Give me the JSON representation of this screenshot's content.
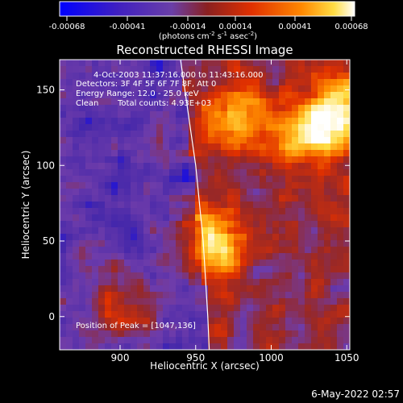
{
  "chart_data": {
    "type": "heatmap",
    "title": "Reconstructed RHESSI Image",
    "xlabel": "Heliocentric X (arcsec)",
    "ylabel": "Heliocentric Y (arcsec)",
    "xlim": [
      860,
      1052
    ],
    "ylim": [
      -22,
      170
    ],
    "xticks": [
      900,
      950,
      1000,
      1050
    ],
    "yticks": [
      0,
      50,
      100,
      150
    ],
    "colorbar": {
      "ticks": [
        "-0.00068",
        "-0.00041",
        "-0.00014",
        "0.00014",
        "0.00041",
        "0.00068"
      ],
      "range": [
        -0.00068,
        0.00068
      ],
      "units": "(photons cm",
      "units_sup1": "-2",
      "units_mid": " s",
      "units_sup2": "-1",
      "units_end": " asec",
      "units_sup3": "-2",
      "units_close": ")"
    },
    "annotations": {
      "time": "4-Oct-2003 11:37:16.000 to 11:43:16.000",
      "detectors": "Detectors: 3F 4F 5F 6F 7F 8F, Att 0",
      "energy": "Energy Range: 12.0 - 25.0 keV",
      "method": "Clean",
      "counts": "Total counts: 4.93E+03",
      "peak": "Position of Peak = [1047,136]"
    },
    "limb_curve": [
      [
        940,
        170
      ],
      [
        950,
        100
      ],
      [
        955,
        50
      ],
      [
        958,
        0
      ],
      [
        959,
        -22
      ]
    ],
    "hot_spots": [
      {
        "x": 960,
        "y": 50,
        "strength": 1.0
      },
      {
        "x": 1047,
        "y": 136,
        "strength": 1.0
      },
      {
        "x": 1025,
        "y": 120,
        "strength": 0.8
      },
      {
        "x": 975,
        "y": 130,
        "strength": 0.7
      },
      {
        "x": 900,
        "y": 5,
        "strength": 0.6
      }
    ],
    "timestamp": "6-May-2022 02:57"
  },
  "colors": {
    "background": "#000000",
    "text": "#ffffff",
    "colormap": [
      "#0000ff",
      "#6a3fa8",
      "#9a2a10",
      "#e03000",
      "#ff8800",
      "#ffdd44",
      "#ffffff"
    ]
  }
}
